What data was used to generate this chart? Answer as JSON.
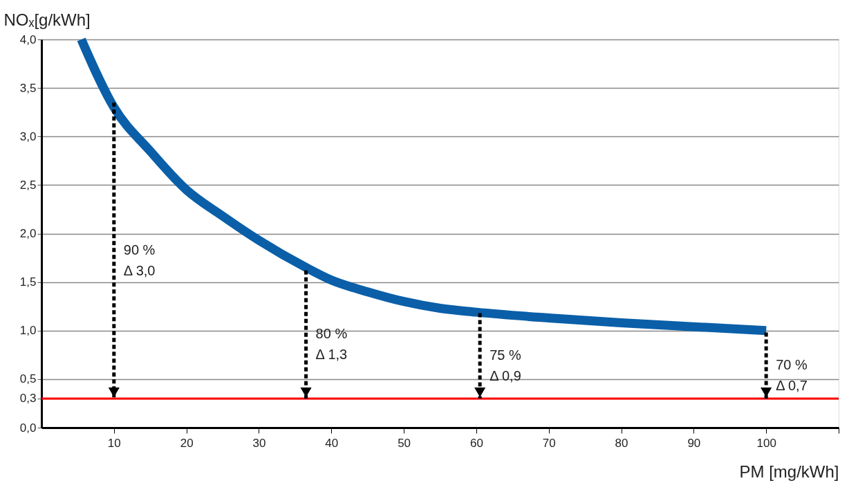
{
  "chart_data": {
    "type": "line",
    "xlabel": "PM [mg/kWh]",
    "ylabel": "NOₓ[g/kWh]",
    "xlim": [
      0,
      110
    ],
    "xticks": [
      10,
      20,
      30,
      40,
      50,
      60,
      70,
      80,
      90,
      100,
      {
        "value": 110,
        "label": null
      }
    ],
    "ylim": [
      0,
      4
    ],
    "yticks": [
      {
        "value": 0,
        "label": "0,0"
      },
      {
        "value": 0.3,
        "label": "0,3"
      },
      {
        "value": 0.5,
        "label": "0,5"
      },
      {
        "value": 1,
        "label": "1,0"
      },
      {
        "value": 1.5,
        "label": "1,5"
      },
      {
        "value": 2,
        "label": "2,0"
      },
      {
        "value": 2.5,
        "label": "2,5"
      },
      {
        "value": 3,
        "label": "3,0"
      },
      {
        "value": 3.5,
        "label": "3,5"
      },
      {
        "value": 4,
        "label": "4,0"
      }
    ],
    "grid": "y",
    "series": [
      {
        "color": "#0a5fa8",
        "x": [
          5.5,
          10,
          15,
          20,
          25,
          30,
          36.5,
          40,
          45,
          50,
          55,
          60,
          70,
          80,
          90,
          100
        ],
        "values": [
          4.0,
          3.3,
          2.85,
          2.45,
          2.18,
          1.93,
          1.65,
          1.52,
          1.4,
          1.3,
          1.23,
          1.19,
          1.13,
          1.08,
          1.04,
          1.0
        ]
      },
      {
        "color": "#000000",
        "line_style": "dashed",
        "x": [
          10,
          10
        ],
        "values": [
          3.35,
          0.3
        ]
      },
      {
        "color": "#000000",
        "line_style": "dashed",
        "x": [
          36.5,
          36.5
        ],
        "values": [
          1.62,
          0.3
        ]
      },
      {
        "color": "#000000",
        "line_style": "dashed",
        "x": [
          60.5,
          60.5
        ],
        "values": [
          1.18,
          0.3
        ]
      },
      {
        "color": "#000000",
        "line_style": "dashed",
        "x": [
          100,
          100
        ],
        "values": [
          0.98,
          0.3
        ]
      }
    ],
    "ref_lines": [
      {
        "axis": "y",
        "value": 0.3,
        "color": "#ff0000"
      }
    ],
    "annotations": [
      "90 %\nΔ 3,0",
      "80 %\nΔ 1,3",
      "75 %\nΔ 0,9",
      "70 %\nΔ 0,7"
    ]
  }
}
